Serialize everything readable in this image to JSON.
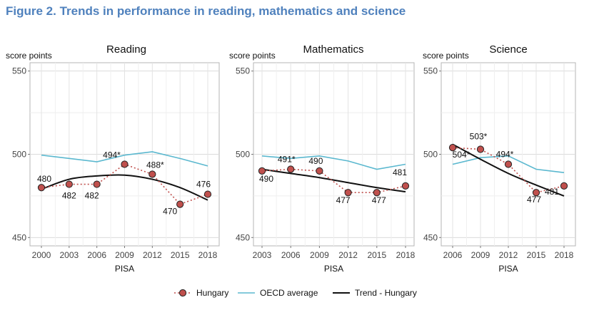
{
  "figure_title": "Figure 2. Trends in performance in reading, mathematics and science",
  "legend": [
    {
      "label": "Hungary",
      "color": "#c0504d"
    },
    {
      "label": "OECD average",
      "color": "#5bb8cf"
    },
    {
      "label": "Trend - Hungary",
      "color": "#111111"
    }
  ],
  "chart_data": [
    {
      "type": "line",
      "title": "Reading",
      "ylabel": "score points",
      "xlabel": "PISA",
      "ylim": [
        445,
        555
      ],
      "yticks": [
        450,
        500,
        550
      ],
      "x": [
        2000,
        2003,
        2006,
        2009,
        2012,
        2015,
        2018
      ],
      "series": [
        {
          "name": "Hungary",
          "values": [
            480,
            482,
            482,
            494,
            488,
            470,
            476
          ],
          "labels": [
            "480",
            "482",
            "482",
            "494*",
            "488*",
            "470",
            "476"
          ]
        },
        {
          "name": "OECD average",
          "values": [
            499.5,
            497.5,
            495.5,
            499.5,
            501.5,
            497.5,
            493
          ]
        },
        {
          "name": "Trend - Hungary",
          "values": [
            479,
            485,
            487,
            487.5,
            485,
            480,
            472.5
          ]
        }
      ]
    },
    {
      "type": "line",
      "title": "Mathematics",
      "ylabel": "score points",
      "xlabel": "PISA",
      "ylim": [
        445,
        555
      ],
      "yticks": [
        450,
        500,
        550
      ],
      "x": [
        2003,
        2006,
        2009,
        2012,
        2015,
        2018
      ],
      "series": [
        {
          "name": "Hungary",
          "values": [
            490,
            491,
            490,
            477,
            477,
            481
          ],
          "labels": [
            "490",
            "491*",
            "490",
            "477",
            "477",
            "481"
          ]
        },
        {
          "name": "OECD average",
          "values": [
            499,
            497.5,
            499,
            496,
            491,
            494
          ]
        },
        {
          "name": "Trend - Hungary",
          "values": [
            491,
            488.5,
            486,
            483,
            480,
            477.5
          ]
        }
      ]
    },
    {
      "type": "line",
      "title": "Science",
      "ylabel": "score points",
      "xlabel": "PISA",
      "ylim": [
        445,
        555
      ],
      "yticks": [
        450,
        500,
        550
      ],
      "x": [
        2006,
        2009,
        2012,
        2015,
        2018
      ],
      "series": [
        {
          "name": "Hungary",
          "values": [
            504,
            503,
            494,
            477,
            481
          ],
          "labels": [
            "504*",
            "503*",
            "494*",
            "477",
            "481"
          ]
        },
        {
          "name": "OECD average",
          "values": [
            494,
            498,
            499,
            491,
            489
          ]
        },
        {
          "name": "Trend - Hungary",
          "values": [
            506,
            497,
            488.5,
            481.5,
            475
          ]
        }
      ]
    }
  ]
}
